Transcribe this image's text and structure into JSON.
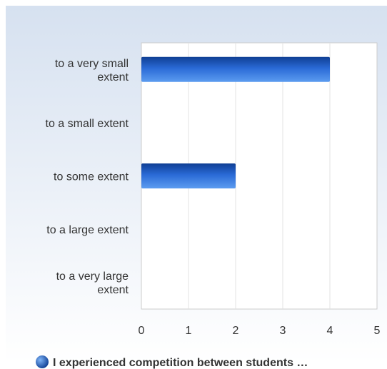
{
  "chart_data": {
    "type": "bar",
    "orientation": "horizontal",
    "categories": [
      [
        "to a very small",
        "extent"
      ],
      [
        "to a small extent"
      ],
      [
        "to some extent"
      ],
      [
        "to a large extent"
      ],
      [
        "to a very large",
        "extent"
      ]
    ],
    "series": [
      {
        "name": "I experienced competition between students …",
        "values": [
          4,
          0,
          2,
          0,
          0
        ],
        "color": "#1f5fc4"
      }
    ],
    "xlim": [
      0,
      5
    ],
    "xticks": [
      "0",
      "1",
      "2",
      "3",
      "4",
      "5"
    ],
    "grid": "vertical",
    "legend": "bottom"
  },
  "colors": {
    "background_top": "#d6e1f0",
    "background_bottom": "#ffffff",
    "plot_area": "#ffffff",
    "bar_dark": "#0f3f94",
    "bar_light": "#5c9cf0"
  }
}
